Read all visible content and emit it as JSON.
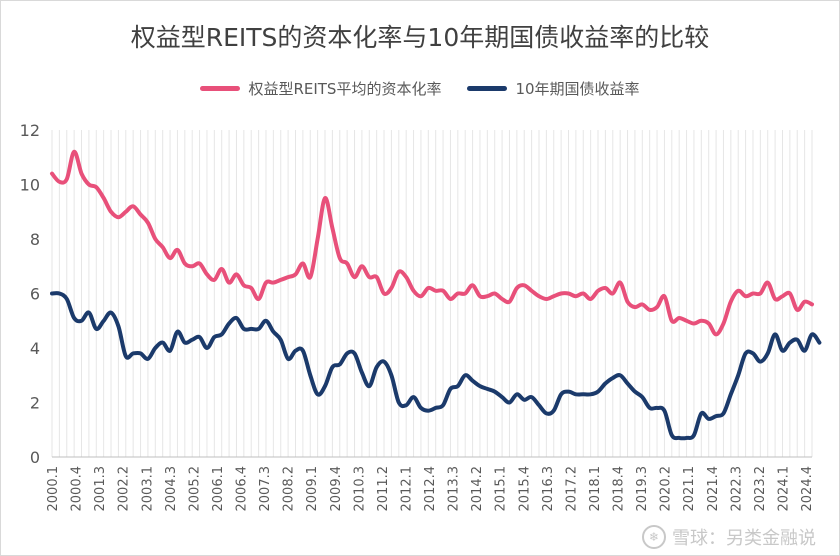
{
  "chart_data": {
    "type": "line",
    "title": "权益型REITS的资本化率与10年期国债收益率的比较",
    "xlabel": "",
    "ylabel": "",
    "ylim": [
      0,
      12
    ],
    "yticks": [
      0,
      2,
      4,
      6,
      8,
      10,
      12
    ],
    "grid": "vertical",
    "legend_position": "top",
    "x_tick_labels": [
      "2000.1",
      "2000.4",
      "2001.3",
      "2002.2",
      "2003.1",
      "2004.3",
      "2005.2",
      "2006.1",
      "2006.4",
      "2007.3",
      "2008.2",
      "2009.1",
      "2009.4",
      "2010.3",
      "2011.2",
      "2012.1",
      "2012.4",
      "2013.3",
      "2014.2",
      "2015.1",
      "2015.4",
      "2016.3",
      "2017.2",
      "2018.1",
      "2018.4",
      "2019.3",
      "2020.2",
      "2021.1",
      "2021.4",
      "2022.3",
      "2023.2",
      "2024.1",
      "2024.4"
    ],
    "series": [
      {
        "name": "权益型REITS平均的资本化率",
        "color": "#E8507A",
        "values": [
          10.4,
          10.1,
          10.2,
          11.2,
          10.4,
          10.0,
          9.9,
          9.5,
          9.0,
          8.8,
          9.0,
          9.2,
          8.9,
          8.6,
          8.0,
          7.7,
          7.3,
          7.6,
          7.1,
          7.0,
          7.1,
          6.7,
          6.5,
          6.9,
          6.4,
          6.7,
          6.3,
          6.2,
          5.8,
          6.4,
          6.4,
          6.5,
          6.6,
          6.7,
          7.1,
          6.6,
          8.0,
          9.5,
          8.4,
          7.3,
          7.1,
          6.6,
          7.0,
          6.6,
          6.6,
          6.0,
          6.2,
          6.8,
          6.6,
          6.1,
          5.9,
          6.2,
          6.1,
          6.1,
          5.8,
          6.0,
          6.0,
          6.3,
          5.9,
          5.9,
          6.0,
          5.8,
          5.7,
          6.2,
          6.3,
          6.1,
          5.9,
          5.8,
          5.9,
          6.0,
          6.0,
          5.9,
          6.0,
          5.8,
          6.1,
          6.2,
          6.0,
          6.4,
          5.7,
          5.5,
          5.6,
          5.4,
          5.5,
          5.9,
          5.0,
          5.1,
          5.0,
          4.9,
          5.0,
          4.9,
          4.5,
          4.9,
          5.7,
          6.1,
          5.9,
          6.0,
          6.0,
          6.4,
          5.8,
          5.9,
          6.0,
          5.4,
          5.7,
          5.6
        ]
      },
      {
        "name": "10年期国债收益率",
        "color": "#1B3A6B",
        "values": [
          6.0,
          6.0,
          5.8,
          5.1,
          5.0,
          5.3,
          4.7,
          5.0,
          5.3,
          4.8,
          3.7,
          3.8,
          3.8,
          3.6,
          4.0,
          4.2,
          3.9,
          4.6,
          4.2,
          4.3,
          4.4,
          4.0,
          4.4,
          4.5,
          4.9,
          5.1,
          4.7,
          4.7,
          4.7,
          5.0,
          4.6,
          4.3,
          3.6,
          3.9,
          3.9,
          3.0,
          2.3,
          2.6,
          3.3,
          3.4,
          3.8,
          3.8,
          3.1,
          2.6,
          3.3,
          3.5,
          3.0,
          2.0,
          1.9,
          2.2,
          1.8,
          1.7,
          1.8,
          1.9,
          2.5,
          2.6,
          3.0,
          2.8,
          2.6,
          2.5,
          2.4,
          2.2,
          2.0,
          2.3,
          2.1,
          2.2,
          1.9,
          1.6,
          1.7,
          2.3,
          2.4,
          2.3,
          2.3,
          2.3,
          2.4,
          2.7,
          2.9,
          3.0,
          2.7,
          2.4,
          2.2,
          1.8,
          1.8,
          1.7,
          0.8,
          0.7,
          0.7,
          0.8,
          1.6,
          1.4,
          1.5,
          1.6,
          2.3,
          3.0,
          3.8,
          3.8,
          3.5,
          3.8,
          4.5,
          3.9,
          4.2,
          4.3,
          3.9,
          4.5,
          4.2
        ]
      }
    ]
  },
  "watermark": {
    "text": "雪球：另类金融说",
    "icon": "snowball-logo-icon"
  }
}
